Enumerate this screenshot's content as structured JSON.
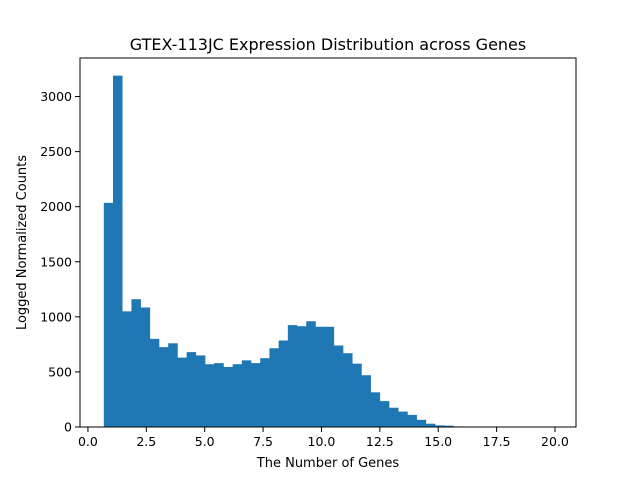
{
  "chart_data": {
    "type": "bar",
    "title": "GTEX-113JC Expression Distribution across Genes",
    "xlabel": "The Number of Genes",
    "ylabel": "Logged Normalized Counts",
    "xlim": [
      -0.34,
      20.9
    ],
    "ylim": [
      0,
      3350
    ],
    "xticks": [
      0.0,
      2.5,
      5.0,
      7.5,
      10.0,
      12.5,
      15.0,
      17.5,
      20.0
    ],
    "xtick_labels": [
      "0.0",
      "2.5",
      "5.0",
      "7.5",
      "10.0",
      "12.5",
      "15.0",
      "17.5",
      "20.0"
    ],
    "yticks": [
      0,
      500,
      1000,
      1500,
      2000,
      2500,
      3000
    ],
    "ytick_labels": [
      "0",
      "500",
      "1000",
      "1500",
      "2000",
      "2500",
      "3000"
    ],
    "bin_start": 0.68,
    "bin_width": 0.394,
    "values": [
      2035,
      3190,
      1050,
      1160,
      1085,
      800,
      725,
      760,
      630,
      680,
      650,
      570,
      580,
      545,
      570,
      605,
      580,
      625,
      715,
      785,
      925,
      915,
      960,
      910,
      910,
      740,
      670,
      575,
      470,
      315,
      235,
      175,
      140,
      110,
      65,
      30,
      15,
      12,
      5,
      3,
      2,
      2,
      1,
      1,
      1,
      1,
      1,
      1,
      1,
      1
    ],
    "bar_color": "#1f77b4",
    "grid": false,
    "legend": "none"
  }
}
